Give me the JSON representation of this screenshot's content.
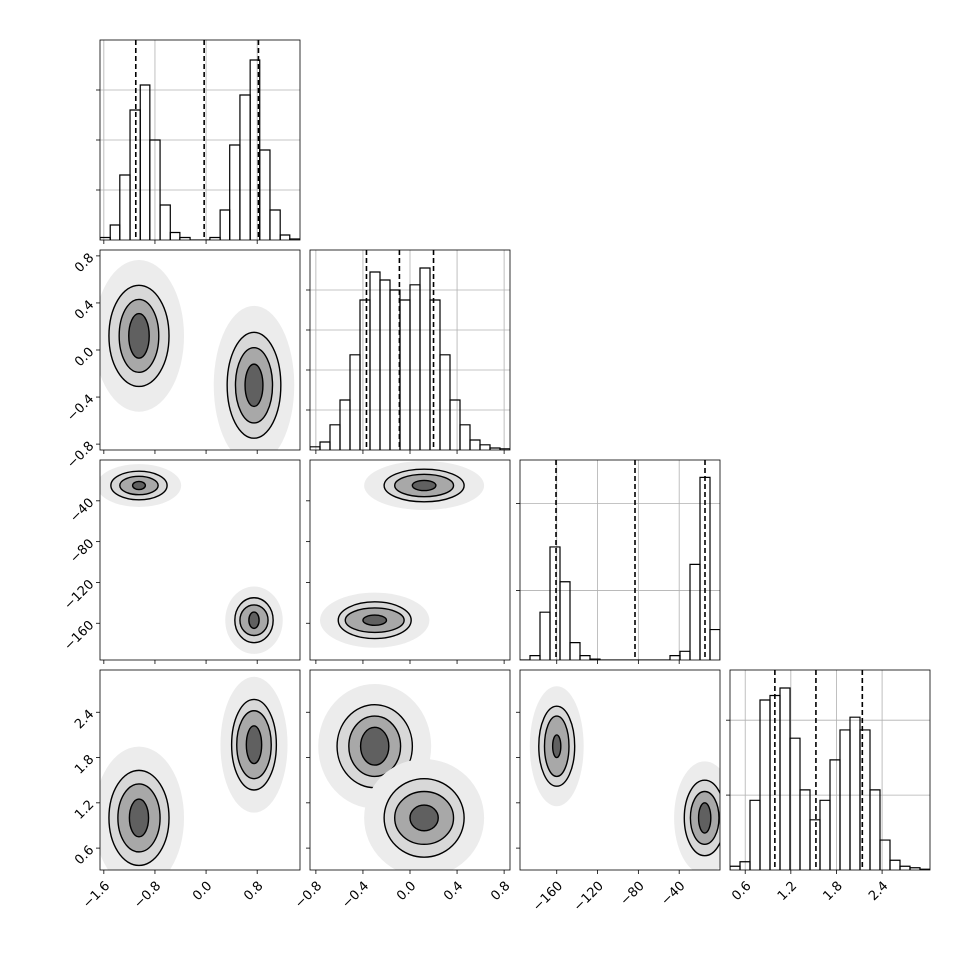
{
  "chart_data": [
    {
      "type": "histogram",
      "bins": [
        -1.66,
        -1.5,
        -1.35,
        -1.19,
        -1.03,
        -0.88,
        -0.72,
        -0.56,
        -0.41,
        -0.25,
        -0.09,
        0.06,
        0.22,
        0.37,
        0.53,
        0.69,
        0.84,
        1.0,
        1.16,
        1.31,
        1.47
      ],
      "values": [
        0.05,
        0.3,
        1.3,
        2.6,
        3.1,
        2.0,
        0.7,
        0.15,
        0.05,
        0,
        0,
        0.05,
        0.6,
        1.9,
        2.9,
        3.6,
        1.8,
        0.6,
        0.1,
        0.02
      ],
      "xlim": [
        -1.66,
        1.47
      ],
      "xticks": [
        -1.6,
        -0.8,
        0,
        0.8
      ],
      "ylim": [
        0,
        4
      ],
      "yticks": [
        1,
        2,
        3
      ],
      "quantiles": [
        -1.1,
        -0.03,
        0.82
      ],
      "grid": true
    },
    {
      "type": "contour",
      "xlim": [
        -1.66,
        1.47
      ],
      "xticks": [
        -1.6,
        -0.8,
        0,
        0.8
      ],
      "ylim": [
        -0.85,
        0.85
      ],
      "yticks": [
        {
          "value": -0.8,
          "label": "−0.8"
        },
        {
          "value": -0.4,
          "label": "−0.4"
        },
        {
          "value": 0,
          "label": "0.0"
        },
        0.4,
        0.8
      ],
      "clusters": [
        {
          "x": -1.05,
          "y": 0.12,
          "rx": [
            0.47,
            0.31,
            0.16
          ],
          "ry": [
            0.43,
            0.31,
            0.19
          ]
        },
        {
          "x": 0.75,
          "y": -0.3,
          "rx": [
            0.42,
            0.29,
            0.14
          ],
          "ry": [
            0.45,
            0.32,
            0.18
          ]
        }
      ]
    },
    {
      "type": "histogram",
      "bins": [
        -0.85,
        -0.765,
        -0.68,
        -0.595,
        -0.51,
        -0.425,
        -0.34,
        -0.255,
        -0.17,
        -0.085,
        0,
        0.085,
        0.17,
        0.255,
        0.34,
        0.425,
        0.51,
        0.595,
        0.68,
        0.765,
        0.85
      ],
      "values": [
        0.08,
        0.2,
        0.63,
        1.25,
        2.38,
        3.75,
        4.45,
        4.25,
        4.0,
        3.75,
        4.13,
        4.55,
        3.75,
        2.38,
        1.25,
        0.63,
        0.25,
        0.13,
        0.05,
        0.03
      ],
      "xlim": [
        -0.85,
        0.85
      ],
      "xticks": [
        -0.8,
        -0.4,
        0,
        0.4,
        0.8
      ],
      "ylim": [
        0,
        5
      ],
      "yticks": [
        1,
        2,
        3,
        4
      ],
      "quantiles": [
        -0.37,
        -0.09,
        0.2
      ],
      "grid": true
    },
    {
      "type": "contour",
      "xlim": [
        -1.66,
        1.47
      ],
      "xticks": [
        -1.6,
        -0.8,
        0,
        0.8
      ],
      "ylim": [
        -196,
        0
      ],
      "yticks": [
        {
          "value": -160,
          "label": "−160"
        },
        {
          "value": -120,
          "label": "−120"
        },
        {
          "value": -80,
          "label": "−80"
        },
        {
          "value": -40,
          "label": "−40"
        }
      ],
      "clusters": [
        {
          "x": -1.05,
          "y": -25,
          "rx": [
            0.44,
            0.3,
            0.1
          ],
          "ry": [
            14,
            9,
            4
          ]
        },
        {
          "x": 0.75,
          "y": -157,
          "rx": [
            0.3,
            0.22,
            0.08
          ],
          "ry": [
            22,
            15,
            8
          ]
        }
      ]
    },
    {
      "type": "contour",
      "xlim": [
        -0.85,
        0.85
      ],
      "xticks": [
        -0.8,
        -0.4,
        0,
        0.4,
        0.8
      ],
      "ylim": [
        -196,
        0
      ],
      "yticks": [
        -160,
        -120,
        -80,
        -40
      ],
      "clusters": [
        {
          "x": 0.12,
          "y": -25,
          "rx": [
            0.34,
            0.25,
            0.1
          ],
          "ry": [
            16,
            11,
            5
          ]
        },
        {
          "x": -0.3,
          "y": -157,
          "rx": [
            0.31,
            0.25,
            0.1
          ],
          "ry": [
            18,
            12,
            5
          ]
        }
      ]
    },
    {
      "type": "histogram",
      "bins": [
        -196,
        -186.2,
        -176.4,
        -166.6,
        -156.8,
        -147,
        -137.2,
        -127.4,
        -117.6,
        -107.8,
        -98,
        -88.2,
        -78.4,
        -68.6,
        -58.8,
        -49,
        -39.2,
        -29.4,
        -19.6,
        -9.8,
        0
      ],
      "values": [
        0,
        0.05,
        0.55,
        1.3,
        0.9,
        0.2,
        0.05,
        0.01,
        0,
        0,
        0,
        0,
        0,
        0,
        0,
        0.05,
        0.1,
        1.1,
        2.1,
        0.35
      ],
      "xlim": [
        -196,
        0
      ],
      "xticks": [
        -160,
        -120,
        -80,
        -40
      ],
      "ylim": [
        0,
        2.3
      ],
      "yticks": [
        0.8,
        1.8
      ],
      "quantiles": [
        -160.7,
        -83.3,
        -14.7
      ],
      "grid": true
    },
    {
      "type": "contour",
      "xlim": [
        -1.66,
        1.47
      ],
      "xticks": [
        {
          "value": -1.6,
          "label": "−1.6"
        },
        {
          "value": -0.8,
          "label": "−0.8"
        },
        {
          "value": 0,
          "label": "0.0"
        },
        0.8
      ],
      "ylim": [
        0.31,
        2.96
      ],
      "yticks": [
        0.6,
        1.2,
        1.8,
        2.4
      ],
      "clusters": [
        {
          "x": -1.05,
          "y": 1.0,
          "rx": [
            0.47,
            0.33,
            0.15
          ],
          "ry": [
            0.63,
            0.45,
            0.25
          ]
        },
        {
          "x": 0.75,
          "y": 1.97,
          "rx": [
            0.35,
            0.27,
            0.12
          ],
          "ry": [
            0.6,
            0.45,
            0.25
          ]
        }
      ]
    },
    {
      "type": "contour",
      "xlim": [
        -0.85,
        0.85
      ],
      "xticks": [
        {
          "value": -0.8,
          "label": "−0.8"
        },
        {
          "value": -0.4,
          "label": "−0.4"
        },
        {
          "value": 0,
          "label": "0.0"
        },
        0.4,
        0.8
      ],
      "ylim": [
        0.31,
        2.96
      ],
      "yticks": [
        0.6,
        1.2,
        1.8,
        2.4
      ],
      "clusters": [
        {
          "x": -0.3,
          "y": 1.95,
          "rx": [
            0.32,
            0.22,
            0.12
          ],
          "ry": [
            0.55,
            0.4,
            0.25
          ]
        },
        {
          "x": 0.12,
          "y": 1.0,
          "rx": [
            0.34,
            0.25,
            0.12
          ],
          "ry": [
            0.52,
            0.35,
            0.17
          ]
        }
      ]
    },
    {
      "type": "contour",
      "xlim": [
        -196,
        0
      ],
      "xticks": [
        {
          "value": -160,
          "label": "−160"
        },
        {
          "value": -120,
          "label": "−120"
        },
        {
          "value": -80,
          "label": "−80"
        },
        {
          "value": -40,
          "label": "−40"
        }
      ],
      "ylim": [
        0.31,
        2.96
      ],
      "yticks": [
        0.6,
        1.2,
        1.8,
        2.4
      ],
      "clusters": [
        {
          "x": -160,
          "y": 1.95,
          "rx": [
            17.6,
            12,
            4
          ],
          "ry": [
            0.53,
            0.4,
            0.15
          ]
        },
        {
          "x": -15,
          "y": 1.0,
          "rx": [
            20,
            14,
            6
          ],
          "ry": [
            0.5,
            0.35,
            0.2
          ]
        }
      ]
    },
    {
      "type": "histogram",
      "bins": [
        0.4,
        0.5315,
        0.663,
        0.7945,
        0.926,
        1.0575,
        1.189,
        1.3205,
        1.452,
        1.5835,
        1.715,
        1.8465,
        1.978,
        2.1095,
        2.241,
        2.3725,
        2.504,
        2.6355,
        2.767,
        2.8985,
        3.03
      ],
      "values": [
        0.05,
        0.11,
        0.93,
        2.27,
        2.33,
        2.43,
        1.76,
        1.07,
        0.67,
        0.93,
        1.47,
        1.87,
        2.04,
        1.87,
        1.07,
        0.4,
        0.13,
        0.05,
        0.03,
        0.01
      ],
      "xlim": [
        0.4,
        3.03
      ],
      "xticks": [
        0.6,
        1.2,
        1.8,
        2.4
      ],
      "ylim": [
        0,
        2.67
      ],
      "yticks": [
        1,
        2
      ],
      "quantiles": [
        0.99,
        1.53,
        2.14
      ],
      "grid": true
    }
  ]
}
